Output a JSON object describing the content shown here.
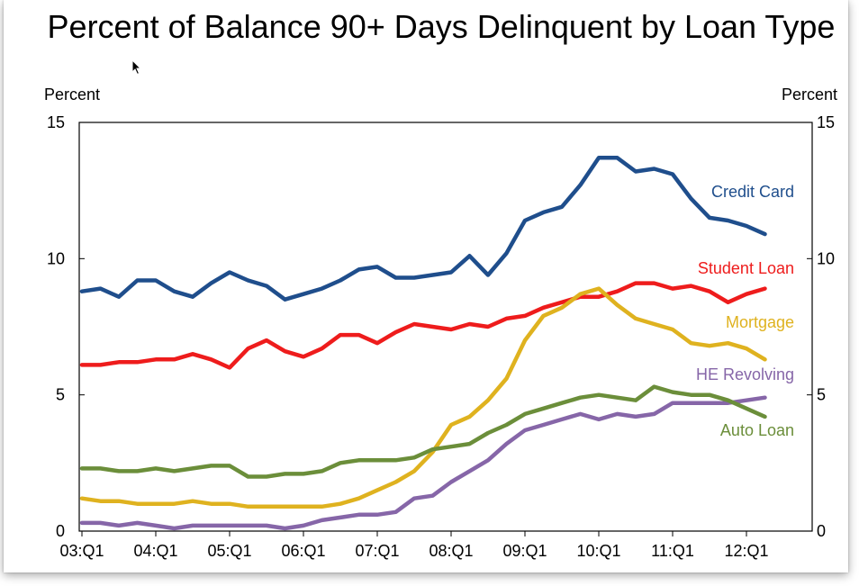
{
  "window": {
    "title": "Percent of Balance 90+ Days Delinquent by Loan Type"
  },
  "chart_data": {
    "type": "line",
    "title": "Percent of Balance 90+ Days Delinquent by Loan Type",
    "ylabel_left": "Percent",
    "ylabel_right": "Percent",
    "xlabel": "",
    "ylim": [
      0,
      15
    ],
    "yticks": [
      0,
      5,
      10,
      15
    ],
    "x": [
      "03:Q1",
      "03:Q2",
      "03:Q3",
      "03:Q4",
      "04:Q1",
      "04:Q2",
      "04:Q3",
      "04:Q4",
      "05:Q1",
      "05:Q2",
      "05:Q3",
      "05:Q4",
      "06:Q1",
      "06:Q2",
      "06:Q3",
      "06:Q4",
      "07:Q1",
      "07:Q2",
      "07:Q3",
      "07:Q4",
      "08:Q1",
      "08:Q2",
      "08:Q3",
      "08:Q4",
      "09:Q1",
      "09:Q2",
      "09:Q3",
      "09:Q4",
      "10:Q1",
      "10:Q2",
      "10:Q3",
      "10:Q4",
      "11:Q1",
      "11:Q2",
      "11:Q3",
      "11:Q4",
      "12:Q1",
      "12:Q2"
    ],
    "xtick_labels": [
      "03:Q1",
      "04:Q1",
      "05:Q1",
      "06:Q1",
      "07:Q1",
      "08:Q1",
      "09:Q1",
      "10:Q1",
      "11:Q1",
      "12:Q1"
    ],
    "grid": false,
    "legend": "inline-right",
    "series": [
      {
        "name": "Credit Card",
        "color": "#1f4e8c",
        "values": [
          8.8,
          8.9,
          8.6,
          9.2,
          9.2,
          8.8,
          8.6,
          9.1,
          9.5,
          9.2,
          9.0,
          8.5,
          8.7,
          8.9,
          9.2,
          9.6,
          9.7,
          9.3,
          9.3,
          9.4,
          9.5,
          10.1,
          9.4,
          10.2,
          11.4,
          11.7,
          11.9,
          12.7,
          13.7,
          13.7,
          13.2,
          13.3,
          13.1,
          12.2,
          11.5,
          11.4,
          11.2,
          10.9
        ]
      },
      {
        "name": "Student Loan",
        "color": "#ee1c1c",
        "values": [
          6.1,
          6.1,
          6.2,
          6.2,
          6.3,
          6.3,
          6.5,
          6.3,
          6.0,
          6.7,
          7.0,
          6.6,
          6.4,
          6.7,
          7.2,
          7.2,
          6.9,
          7.3,
          7.6,
          7.5,
          7.4,
          7.6,
          7.5,
          7.8,
          7.9,
          8.2,
          8.4,
          8.6,
          8.6,
          8.8,
          9.1,
          9.1,
          8.9,
          9.0,
          8.8,
          8.4,
          8.7,
          8.9
        ]
      },
      {
        "name": "Mortgage",
        "color": "#dfb21f",
        "values": [
          1.2,
          1.1,
          1.1,
          1.0,
          1.0,
          1.0,
          1.1,
          1.0,
          1.0,
          0.9,
          0.9,
          0.9,
          0.9,
          0.9,
          1.0,
          1.2,
          1.5,
          1.8,
          2.2,
          2.9,
          3.9,
          4.2,
          4.8,
          5.6,
          7.0,
          7.9,
          8.2,
          8.7,
          8.9,
          8.3,
          7.8,
          7.6,
          7.4,
          6.9,
          6.8,
          6.9,
          6.7,
          6.3
        ]
      },
      {
        "name": "HE Revolving",
        "color": "#8666a8",
        "values": [
          0.3,
          0.3,
          0.2,
          0.3,
          0.2,
          0.1,
          0.2,
          0.2,
          0.2,
          0.2,
          0.2,
          0.1,
          0.2,
          0.4,
          0.5,
          0.6,
          0.6,
          0.7,
          1.2,
          1.3,
          1.8,
          2.2,
          2.6,
          3.2,
          3.7,
          3.9,
          4.1,
          4.3,
          4.1,
          4.3,
          4.2,
          4.3,
          4.7,
          4.7,
          4.7,
          4.7,
          4.8,
          4.9
        ]
      },
      {
        "name": "Auto Loan",
        "color": "#6b8e3a",
        "values": [
          2.3,
          2.3,
          2.2,
          2.2,
          2.3,
          2.2,
          2.3,
          2.4,
          2.4,
          2.0,
          2.0,
          2.1,
          2.1,
          2.2,
          2.5,
          2.6,
          2.6,
          2.6,
          2.7,
          3.0,
          3.1,
          3.2,
          3.6,
          3.9,
          4.3,
          4.5,
          4.7,
          4.9,
          5.0,
          4.9,
          4.8,
          5.3,
          5.1,
          5.0,
          5.0,
          4.8,
          4.5,
          4.2
        ]
      }
    ]
  }
}
